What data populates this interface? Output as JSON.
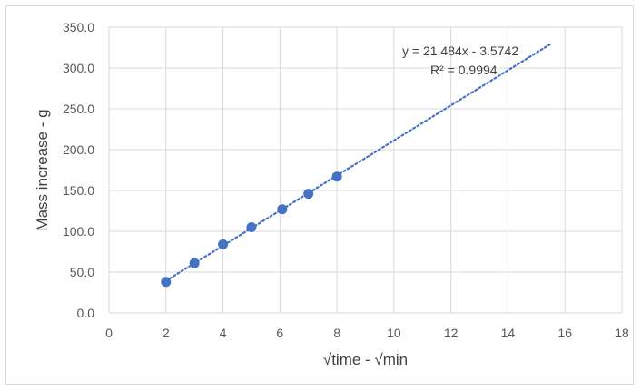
{
  "chart_data": {
    "type": "scatter",
    "xlabel": "√time - √min",
    "ylabel": "Mass increase - g",
    "xlim": [
      0,
      18
    ],
    "ylim": [
      0,
      350
    ],
    "x_ticks": [
      "0",
      "2",
      "4",
      "6",
      "8",
      "10",
      "12",
      "14",
      "16",
      "18"
    ],
    "y_ticks": [
      "0.0",
      "50.0",
      "100.0",
      "150.0",
      "200.0",
      "250.0",
      "300.0",
      "350.0"
    ],
    "grid": true,
    "series": [
      {
        "x": [
          2,
          3,
          4,
          5,
          6.08,
          7,
          8
        ],
        "y": [
          38,
          61,
          84,
          105,
          127,
          146,
          167
        ],
        "color": "#4472c4"
      }
    ],
    "trendline": {
      "slope": 21.484,
      "intercept": -3.5742,
      "x_range": [
        2,
        15.55
      ],
      "color": "#4472c4",
      "style": "dotted",
      "equation": "y = 21.484x - 3.5742",
      "r_squared": "R² = 0.9994"
    }
  }
}
